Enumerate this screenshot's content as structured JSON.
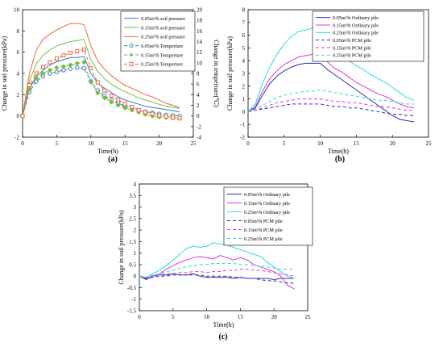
{
  "chart_data": [
    {
      "id": "a",
      "type": "line",
      "panel_label": "(a)",
      "xlabel": "Time(h)",
      "ylabel": "Change in soil pressure(kPa)",
      "y2label": "Change in temperture(℃)",
      "xlim": [
        0,
        25
      ],
      "ylim": [
        -2,
        10
      ],
      "y2lim": [
        -4,
        20
      ],
      "xticks": [
        0,
        5,
        10,
        15,
        20,
        25
      ],
      "yticks": [
        -2,
        0,
        2,
        4,
        6,
        8,
        10
      ],
      "y2ticks": [
        -4,
        -2,
        0,
        2,
        4,
        6,
        8,
        10,
        12,
        14,
        16,
        18,
        20
      ],
      "grid": false,
      "legend_position": "top-right",
      "series": [
        {
          "name": "0.05m³/h soil pressure",
          "axis": "left",
          "color": "#2f7fc1",
          "dash": "",
          "marker": "",
          "x": [
            0,
            1,
            2,
            3,
            4,
            5,
            6,
            7,
            8,
            9,
            10,
            11,
            12,
            13,
            14,
            15,
            16,
            17,
            18,
            19,
            20,
            21,
            22,
            23
          ],
          "y": [
            0,
            2.6,
            3.7,
            4.3,
            4.8,
            5.1,
            5.3,
            5.5,
            5.5,
            5.6,
            4.0,
            3.1,
            2.6,
            2.2,
            1.8,
            1.5,
            1.3,
            1.1,
            0.9,
            0.8,
            0.7,
            0.6,
            0.5,
            0.4
          ]
        },
        {
          "name": "0.15m³/h soil pressure",
          "axis": "left",
          "color": "#6cbf3a",
          "dash": "",
          "marker": "",
          "x": [
            0,
            1,
            2,
            3,
            4,
            5,
            6,
            7,
            8,
            9,
            10,
            11,
            12,
            13,
            14,
            15,
            16,
            17,
            18,
            19,
            20,
            21,
            22,
            23
          ],
          "y": [
            0,
            3.3,
            4.9,
            5.7,
            6.2,
            6.6,
            6.8,
            7.0,
            7.1,
            7.2,
            5.3,
            4.2,
            3.5,
            3.0,
            2.6,
            2.3,
            2.0,
            1.7,
            1.5,
            1.3,
            1.1,
            0.9,
            0.8,
            0.7
          ]
        },
        {
          "name": "0.25m³/h soil pressure",
          "axis": "left",
          "color": "#f0663c",
          "dash": "",
          "marker": "",
          "x": [
            0,
            1,
            2,
            3,
            4,
            5,
            6,
            7,
            8,
            9,
            10,
            11,
            12,
            13,
            14,
            15,
            16,
            17,
            18,
            19,
            20,
            21,
            22,
            23
          ],
          "y": [
            0,
            4.0,
            6.2,
            7.2,
            7.7,
            8.1,
            8.4,
            8.7,
            8.7,
            8.6,
            6.6,
            5.2,
            4.4,
            3.8,
            3.3,
            2.9,
            2.6,
            2.3,
            2.0,
            1.8,
            1.5,
            1.2,
            1.0,
            0.8
          ]
        },
        {
          "name": "0.05m³/h Temperture",
          "axis": "right",
          "color": "#2f7fc1",
          "dash": "4,3",
          "marker": "circle",
          "x": [
            0,
            1,
            2,
            3,
            4,
            5,
            6,
            7,
            8,
            9,
            10,
            11,
            12,
            13,
            14,
            15,
            16,
            17,
            18,
            19,
            20,
            21,
            22,
            23
          ],
          "y": [
            0,
            4.5,
            6.5,
            7.5,
            8.0,
            8.3,
            8.6,
            8.9,
            9.1,
            9.0,
            6.5,
            4.8,
            3.8,
            3.0,
            2.4,
            1.9,
            1.5,
            1.1,
            0.8,
            0.6,
            0.4,
            0.2,
            0.1,
            0.0
          ]
        },
        {
          "name": "0.15m³/h Temperture",
          "axis": "right",
          "color": "#6cbf3a",
          "dash": "4,3",
          "marker": "diamond",
          "x": [
            0,
            1,
            2,
            3,
            4,
            5,
            6,
            7,
            8,
            9,
            10,
            11,
            12,
            13,
            14,
            15,
            16,
            17,
            18,
            19,
            20,
            21,
            22,
            23
          ],
          "y": [
            0,
            5.0,
            7.1,
            8.0,
            8.6,
            9.1,
            9.3,
            9.6,
            9.9,
            10.1,
            6.4,
            4.3,
            3.4,
            2.6,
            2.0,
            1.5,
            1.1,
            0.7,
            0.3,
            0.0,
            -0.2,
            -0.3,
            -0.4,
            -0.5
          ]
        },
        {
          "name": "0.25m³/h Temperture",
          "axis": "right",
          "color": "#f0663c",
          "dash": "4,3",
          "marker": "square",
          "x": [
            0,
            1,
            2,
            3,
            4,
            5,
            6,
            7,
            8,
            9,
            10,
            11,
            12,
            13,
            14,
            15,
            16,
            17,
            18,
            19,
            20,
            21,
            22,
            23
          ],
          "y": [
            0,
            5.8,
            8.0,
            9.2,
            10.1,
            10.8,
            11.4,
            11.9,
            12.2,
            12.5,
            9.0,
            6.3,
            4.8,
            3.8,
            3.0,
            2.3,
            1.7,
            1.1,
            0.7,
            0.4,
            0.1,
            -0.1,
            -0.3,
            -0.4
          ]
        }
      ]
    },
    {
      "id": "b",
      "type": "line",
      "panel_label": "(b)",
      "xlabel": "Time(h)",
      "ylabel": "Change in soil pressure(kPa)",
      "xlim": [
        0,
        25
      ],
      "ylim": [
        -2,
        8
      ],
      "xticks": [
        0,
        5,
        10,
        15,
        20,
        25
      ],
      "yticks": [
        -2,
        -1,
        0,
        1,
        2,
        3,
        4,
        5,
        6,
        7,
        8
      ],
      "grid": false,
      "legend_position": "top-right",
      "series": [
        {
          "name": "0.05m³/h Ordinary pile",
          "color": "#2b2fb8",
          "dash": "",
          "x": [
            0,
            1,
            2,
            3,
            4,
            5,
            6,
            7,
            8,
            9,
            10,
            11,
            12,
            13,
            14,
            15,
            16,
            17,
            18,
            19,
            20,
            21,
            22,
            23
          ],
          "y": [
            0,
            0.3,
            1.3,
            2.2,
            2.8,
            3.2,
            3.5,
            3.7,
            3.8,
            3.8,
            3.8,
            3.3,
            2.9,
            2.5,
            2.1,
            1.7,
            1.3,
            0.9,
            0.5,
            0.1,
            -0.3,
            -0.6,
            -0.7,
            -0.8
          ]
        },
        {
          "name": "0.15m³/h Ordinary pile",
          "color": "#e034e0",
          "dash": "",
          "x": [
            0,
            1,
            2,
            3,
            4,
            5,
            6,
            7,
            8,
            9,
            10,
            11,
            12,
            13,
            14,
            15,
            16,
            17,
            18,
            19,
            20,
            21,
            22,
            23
          ],
          "y": [
            0,
            0.4,
            1.6,
            2.6,
            3.2,
            3.7,
            4.0,
            4.3,
            4.4,
            4.5,
            4.4,
            3.9,
            3.4,
            3.1,
            2.7,
            2.3,
            2.0,
            1.7,
            1.4,
            1.2,
            0.9,
            0.6,
            0.4,
            0.3
          ]
        },
        {
          "name": "0.25m³/h Ordinary pile",
          "color": "#1fe0e0",
          "dash": "",
          "x": [
            0,
            1,
            2,
            3,
            4,
            5,
            6,
            7,
            8,
            9,
            10,
            11,
            12,
            13,
            14,
            15,
            16,
            17,
            18,
            19,
            20,
            21,
            22,
            23
          ],
          "y": [
            0,
            0.6,
            2.2,
            3.5,
            4.5,
            5.3,
            5.9,
            6.3,
            6.4,
            6.6,
            6.5,
            5.8,
            5.1,
            4.5,
            4.0,
            3.6,
            3.3,
            2.9,
            2.6,
            2.3,
            1.9,
            1.5,
            1.1,
            0.9
          ]
        },
        {
          "name": "0.05m³/h PCM pile",
          "color": "#2b2fb8",
          "dash": "4,3",
          "x": [
            0,
            1,
            2,
            3,
            4,
            5,
            6,
            7,
            8,
            9,
            10,
            11,
            12,
            13,
            14,
            15,
            16,
            17,
            18,
            19,
            20,
            21,
            22,
            23
          ],
          "y": [
            0,
            0.1,
            0.2,
            0.3,
            0.4,
            0.5,
            0.6,
            0.6,
            0.6,
            0.6,
            0.6,
            0.5,
            0.4,
            0.4,
            0.3,
            0.3,
            0.2,
            0.1,
            0.0,
            -0.1,
            -0.2,
            -0.2,
            -0.3,
            -0.3
          ]
        },
        {
          "name": "0.15m³/h PCM pile",
          "color": "#e034e0",
          "dash": "4,3",
          "x": [
            0,
            1,
            2,
            3,
            4,
            5,
            6,
            7,
            8,
            9,
            10,
            11,
            12,
            13,
            14,
            15,
            16,
            17,
            18,
            19,
            20,
            21,
            22,
            23
          ],
          "y": [
            0,
            0.1,
            0.3,
            0.5,
            0.7,
            0.8,
            0.9,
            1.0,
            1.0,
            1.0,
            1.0,
            0.9,
            0.8,
            0.8,
            0.7,
            0.7,
            0.6,
            0.5,
            0.4,
            0.4,
            0.3,
            0.2,
            0.1,
            0.1
          ]
        },
        {
          "name": "0.25m³/h PCM pile",
          "color": "#1fe0e0",
          "dash": "4,3",
          "x": [
            0,
            1,
            2,
            3,
            4,
            5,
            6,
            7,
            8,
            9,
            10,
            11,
            12,
            13,
            14,
            15,
            16,
            17,
            18,
            19,
            20,
            21,
            22,
            23
          ],
          "y": [
            0,
            0.2,
            0.5,
            0.8,
            1.1,
            1.3,
            1.4,
            1.5,
            1.6,
            1.6,
            1.7,
            1.6,
            1.5,
            1.4,
            1.3,
            1.2,
            1.1,
            1.0,
            0.9,
            0.9,
            0.8,
            0.7,
            0.6,
            0.6
          ]
        }
      ]
    },
    {
      "id": "c",
      "type": "line",
      "panel_label": "(c)",
      "xlabel": "Time(h)",
      "ylabel": "Change in soil pressure(kPa)",
      "xlim": [
        0,
        25
      ],
      "ylim": [
        -1.5,
        4
      ],
      "xticks": [
        0,
        5,
        10,
        15,
        20,
        25
      ],
      "yticks": [
        -1.5,
        -1,
        -0.5,
        0,
        0.5,
        1,
        1.5,
        2,
        2.5,
        3,
        3.5,
        4
      ],
      "grid": false,
      "legend_position": "top-right",
      "series": [
        {
          "name": "0.05m³/h Ordinary pile",
          "color": "#2b2fb8",
          "dash": "",
          "x": [
            0,
            1,
            2,
            3,
            4,
            5,
            6,
            7,
            8,
            9,
            10,
            11,
            12,
            13,
            14,
            15,
            16,
            17,
            18,
            19,
            20,
            21,
            22,
            23
          ],
          "y": [
            0,
            -0.15,
            0,
            0.05,
            0.05,
            0.1,
            0.05,
            0.05,
            0.1,
            0,
            -0.05,
            -0.05,
            -0.05,
            -0.05,
            -0.1,
            -0.05,
            -0.1,
            -0.1,
            -0.1,
            -0.1,
            -0.15,
            -0.1,
            -0.1,
            -0.1
          ]
        },
        {
          "name": "0.15m³/h Ordinary pile",
          "color": "#e034e0",
          "dash": "",
          "x": [
            0,
            1,
            2,
            3,
            4,
            5,
            6,
            7,
            8,
            9,
            10,
            11,
            12,
            13,
            14,
            15,
            16,
            17,
            18,
            19,
            20,
            21,
            22,
            23
          ],
          "y": [
            0,
            -0.1,
            0,
            0.1,
            0.3,
            0.45,
            0.6,
            0.7,
            0.8,
            0.85,
            0.8,
            0.75,
            0.9,
            0.8,
            0.7,
            0.8,
            0.7,
            0.5,
            0.4,
            0.3,
            0.2,
            0,
            -0.4,
            -0.55
          ]
        },
        {
          "name": "0.25m³/h Ordinary pile",
          "color": "#1fe0e0",
          "dash": "",
          "x": [
            0,
            1,
            2,
            3,
            4,
            5,
            6,
            7,
            8,
            9,
            10,
            11,
            12,
            13,
            14,
            15,
            16,
            17,
            18,
            19,
            20,
            21,
            22,
            23
          ],
          "y": [
            0,
            -0.05,
            0.1,
            0.25,
            0.45,
            0.7,
            0.95,
            1.2,
            1.3,
            1.25,
            1.3,
            1.45,
            1.4,
            1.35,
            1.25,
            1.15,
            1.05,
            0.95,
            0.85,
            0.6,
            0.4,
            0.2,
            0,
            -0.1
          ]
        },
        {
          "name": "0.05m³/h PCM pile",
          "color": "#2b2fb8",
          "dash": "4,3",
          "x": [
            0,
            1,
            2,
            3,
            4,
            5,
            6,
            7,
            8,
            9,
            10,
            11,
            12,
            13,
            14,
            15,
            16,
            17,
            18,
            19,
            20,
            21,
            22,
            23
          ],
          "y": [
            0,
            -0.1,
            -0.05,
            0,
            0,
            0.05,
            0.05,
            0.05,
            0.05,
            0.05,
            0,
            0,
            0,
            0,
            -0.05,
            -0.05,
            -0.1,
            -0.1,
            -0.15,
            -0.2,
            -0.2,
            -0.25,
            -0.3,
            -0.3
          ]
        },
        {
          "name": "0.15m³/h PCM pile",
          "color": "#e034e0",
          "dash": "4,3",
          "x": [
            0,
            1,
            2,
            3,
            4,
            5,
            6,
            7,
            8,
            9,
            10,
            11,
            12,
            13,
            14,
            15,
            16,
            17,
            18,
            19,
            20,
            21,
            22,
            23
          ],
          "y": [
            0,
            -0.05,
            0,
            0.05,
            0.1,
            0.1,
            0.15,
            0.15,
            0.2,
            0.2,
            0.15,
            0.2,
            0.2,
            0.25,
            0.25,
            0.3,
            0.3,
            0.25,
            0.25,
            0.2,
            0.15,
            0.1,
            0.05,
            0
          ]
        },
        {
          "name": "0.25m³/h PCM pile",
          "color": "#1fe0e0",
          "dash": "4,3",
          "x": [
            0,
            1,
            2,
            3,
            4,
            5,
            6,
            7,
            8,
            9,
            10,
            11,
            12,
            13,
            14,
            15,
            16,
            17,
            18,
            19,
            20,
            21,
            22,
            23
          ],
          "y": [
            0,
            -0.05,
            0.05,
            0.1,
            0.2,
            0.25,
            0.35,
            0.4,
            0.45,
            0.5,
            0.5,
            0.55,
            0.55,
            0.55,
            0.55,
            0.5,
            0.5,
            0.45,
            0.45,
            0.4,
            0.35,
            0.3,
            0.3,
            0.3
          ]
        }
      ]
    }
  ]
}
